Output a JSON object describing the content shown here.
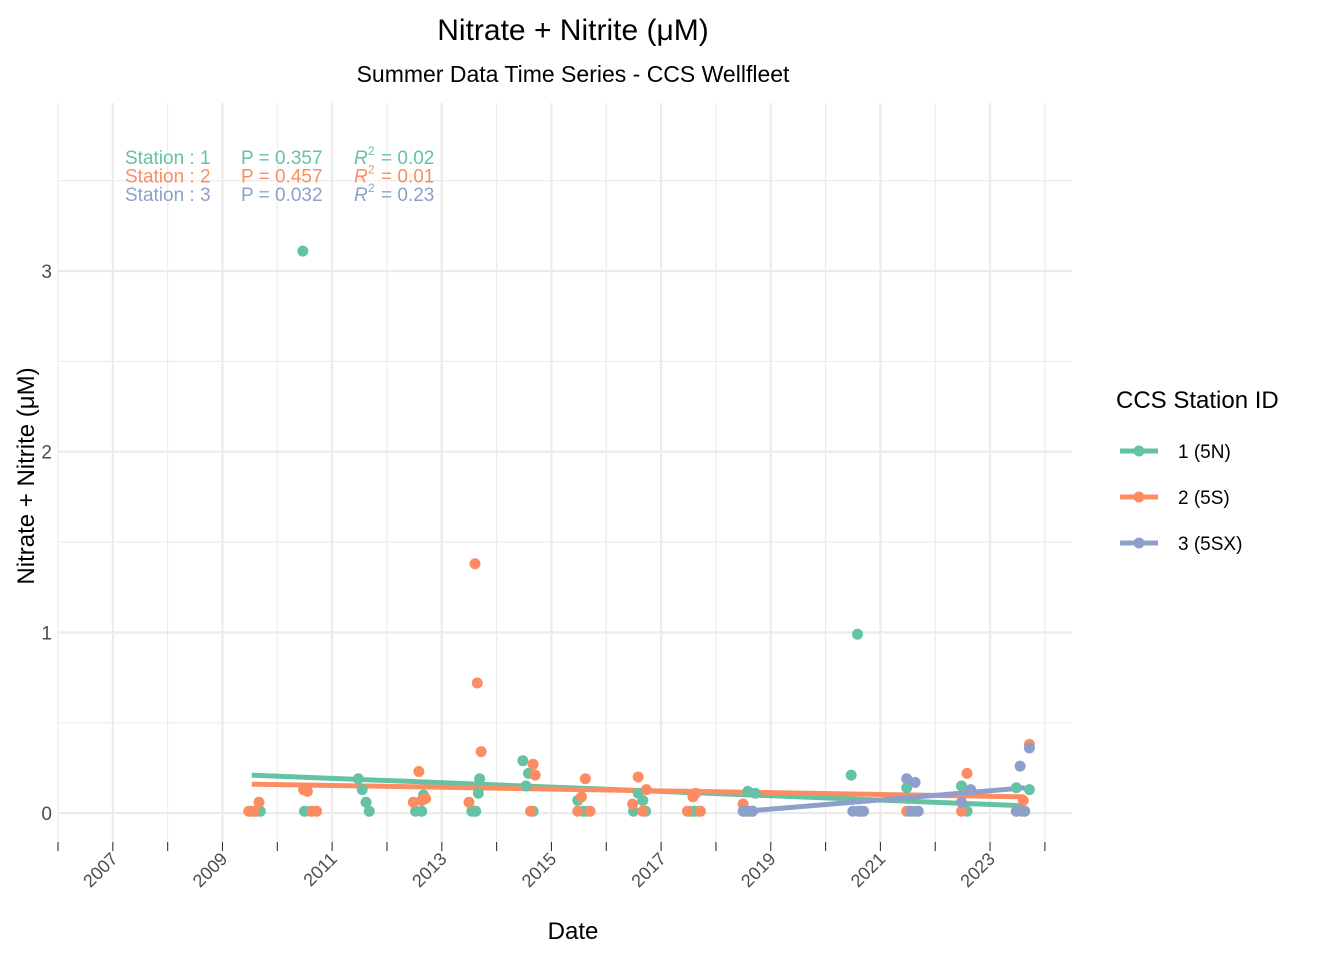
{
  "chart_data": {
    "type": "scatter",
    "title": "Nitrate + Nitrite (μM)",
    "subtitle": "Summer Data Time Series - CCS Wellfleet",
    "xlabel": "Date",
    "ylabel": "Nitrate + Nitrite (μM)",
    "x_ticks": [
      "2007",
      "2009",
      "2011",
      "2013",
      "2015",
      "2017",
      "2019",
      "2021",
      "2023"
    ],
    "y_ticks": [
      "0",
      "1",
      "2",
      "3"
    ],
    "xlim": [
      "2006-01-01",
      "2024-06-30"
    ],
    "ylim": [
      -0.16,
      3.93
    ],
    "grid": true,
    "legend_position": "right",
    "legend_title": "CCS Station ID",
    "series": [
      {
        "name": "1 (5N)",
        "color": "#66C2A5",
        "stats": {
          "station": "Station : 1",
          "p": "P = 0.357",
          "r2": "= 0.02"
        },
        "trend": [
          [
            "2009-07-15",
            0.21
          ],
          [
            "2023-08-20",
            0.04
          ]
        ],
        "points": [
          [
            "2009-07-05",
            0.01
          ],
          [
            "2009-08-15",
            0.01
          ],
          [
            "2009-09-10",
            0.01
          ],
          [
            "2010-06-20",
            3.11
          ],
          [
            "2010-07-01",
            0.01
          ],
          [
            "2010-08-10",
            0.01
          ],
          [
            "2011-06-25",
            0.19
          ],
          [
            "2011-07-20",
            0.13
          ],
          [
            "2011-08-15",
            0.06
          ],
          [
            "2011-09-05",
            0.01
          ],
          [
            "2012-07-10",
            0.01
          ],
          [
            "2012-08-20",
            0.01
          ],
          [
            "2012-09-01",
            0.1
          ],
          [
            "2013-07-20",
            0.01
          ],
          [
            "2013-08-01",
            0.01
          ],
          [
            "2013-08-15",
            0.01
          ],
          [
            "2013-09-01",
            0.11
          ],
          [
            "2013-09-10",
            0.19
          ],
          [
            "2014-06-25",
            0.29
          ],
          [
            "2014-07-15",
            0.15
          ],
          [
            "2014-08-01",
            0.22
          ],
          [
            "2014-09-01",
            0.01
          ],
          [
            "2015-06-25",
            0.07
          ],
          [
            "2015-08-01",
            0.01
          ],
          [
            "2015-09-01",
            0.01
          ],
          [
            "2016-07-01",
            0.01
          ],
          [
            "2016-08-01",
            0.11
          ],
          [
            "2016-09-01",
            0.07
          ],
          [
            "2016-09-20",
            0.01
          ],
          [
            "2017-07-10",
            0.01
          ],
          [
            "2017-08-10",
            0.01
          ],
          [
            "2017-09-10",
            0.01
          ],
          [
            "2018-07-10",
            0.01
          ],
          [
            "2018-08-01",
            0.12
          ],
          [
            "2018-08-25",
            0.01
          ],
          [
            "2018-09-20",
            0.11
          ],
          [
            "2020-06-20",
            0.21
          ],
          [
            "2020-08-01",
            0.99
          ],
          [
            "2020-08-20",
            0.01
          ],
          [
            "2021-06-25",
            0.14
          ],
          [
            "2021-08-20",
            0.01
          ],
          [
            "2022-06-25",
            0.15
          ],
          [
            "2022-08-01",
            0.01
          ],
          [
            "2023-06-25",
            0.14
          ],
          [
            "2023-08-01",
            0.01
          ],
          [
            "2023-09-20",
            0.13
          ]
        ]
      },
      {
        "name": "2 (5S)",
        "color": "#FC8D62",
        "stats": {
          "station": "Station : 2",
          "p": "P = 0.457",
          "r2": "= 0.01"
        },
        "trend": [
          [
            "2009-07-15",
            0.16
          ],
          [
            "2023-08-20",
            0.09
          ]
        ],
        "points": [
          [
            "2009-06-25",
            0.01
          ],
          [
            "2009-08-01",
            0.01
          ],
          [
            "2009-09-01",
            0.06
          ],
          [
            "2010-06-25",
            0.13
          ],
          [
            "2010-07-20",
            0.12
          ],
          [
            "2010-08-20",
            0.01
          ],
          [
            "2010-09-20",
            0.01
          ],
          [
            "2012-06-25",
            0.06
          ],
          [
            "2012-08-01",
            0.23
          ],
          [
            "2012-08-20",
            0.07
          ],
          [
            "2012-09-15",
            0.08
          ],
          [
            "2013-07-01",
            0.06
          ],
          [
            "2013-08-10",
            1.38
          ],
          [
            "2013-08-25",
            0.72
          ],
          [
            "2013-09-20",
            0.34
          ],
          [
            "2014-08-15",
            0.01
          ],
          [
            "2014-09-01",
            0.27
          ],
          [
            "2014-09-15",
            0.21
          ],
          [
            "2015-06-25",
            0.01
          ],
          [
            "2015-07-20",
            0.09
          ],
          [
            "2015-08-15",
            0.19
          ],
          [
            "2015-09-15",
            0.01
          ],
          [
            "2016-06-25",
            0.05
          ],
          [
            "2016-08-01",
            0.2
          ],
          [
            "2016-09-01",
            0.01
          ],
          [
            "2016-09-25",
            0.13
          ],
          [
            "2017-06-25",
            0.01
          ],
          [
            "2017-08-01",
            0.09
          ],
          [
            "2017-08-20",
            0.11
          ],
          [
            "2017-09-20",
            0.01
          ],
          [
            "2018-07-01",
            0.05
          ],
          [
            "2018-09-01",
            0.01
          ],
          [
            "2021-06-25",
            0.01
          ],
          [
            "2022-06-25",
            0.01
          ],
          [
            "2022-08-01",
            0.22
          ],
          [
            "2023-06-25",
            0.01
          ],
          [
            "2023-08-10",
            0.07
          ],
          [
            "2023-09-20",
            0.38
          ]
        ]
      },
      {
        "name": "3 (5SX)",
        "color": "#8DA0CB",
        "stats": {
          "station": "Station : 3",
          "p": "P = 0.032",
          "r2": "= 0.23"
        },
        "trend": [
          [
            "2018-07-15",
            0.01
          ],
          [
            "2023-08-20",
            0.14
          ]
        ],
        "points": [
          [
            "2018-07-01",
            0.01
          ],
          [
            "2018-08-01",
            0.01
          ],
          [
            "2018-09-01",
            0.01
          ],
          [
            "2020-07-01",
            0.01
          ],
          [
            "2020-08-10",
            0.01
          ],
          [
            "2020-09-10",
            0.01
          ],
          [
            "2021-06-25",
            0.19
          ],
          [
            "2021-07-20",
            0.01
          ],
          [
            "2021-08-20",
            0.17
          ],
          [
            "2021-09-10",
            0.01
          ],
          [
            "2022-06-25",
            0.06
          ],
          [
            "2022-08-25",
            0.13
          ],
          [
            "2023-06-25",
            0.01
          ],
          [
            "2023-07-20",
            0.26
          ],
          [
            "2023-08-20",
            0.01
          ],
          [
            "2023-09-20",
            0.36
          ]
        ]
      }
    ]
  }
}
